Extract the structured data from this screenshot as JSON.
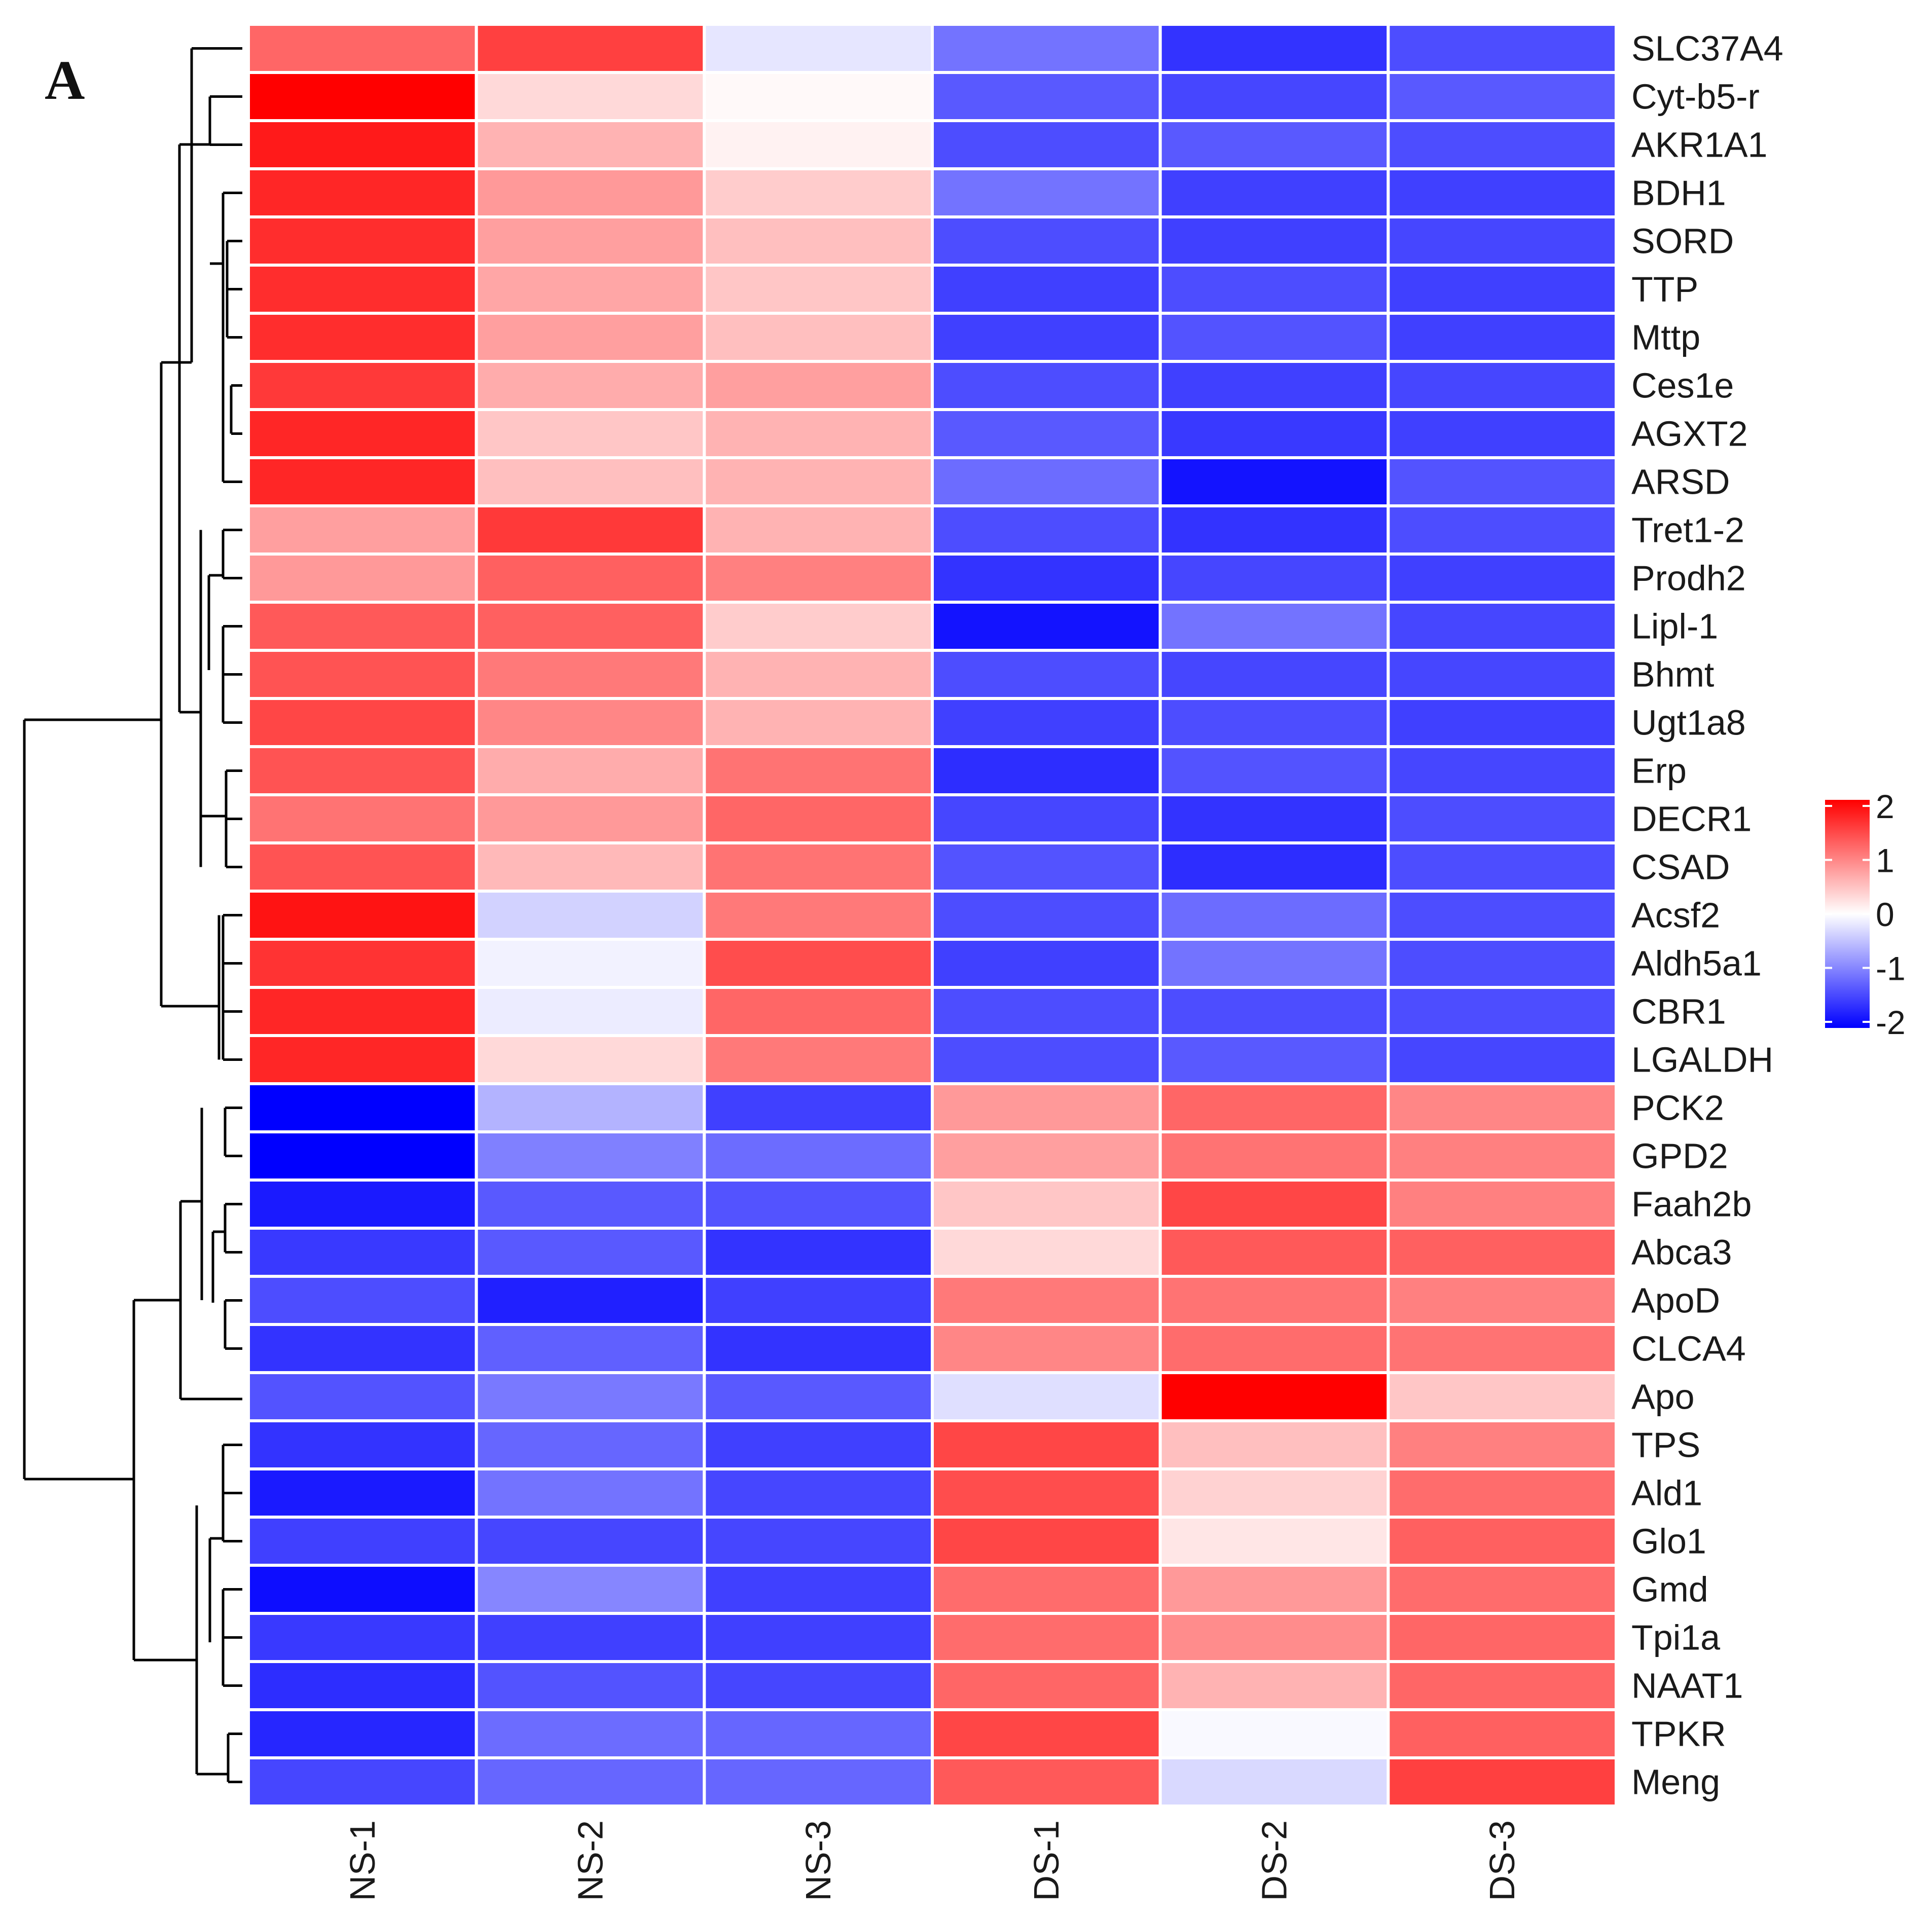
{
  "panel_label": "A",
  "colors": {
    "low": "#0000ff",
    "mid": "#ffffff",
    "high": "#ff0000"
  },
  "chart_data": {
    "type": "heatmap",
    "title": "",
    "columns": [
      "NS-1",
      "NS-2",
      "NS-3",
      "DS-1",
      "DS-2",
      "DS-3"
    ],
    "rows": [
      "SLC37A4",
      "Cyt-b5-r",
      "AKR1A1",
      "BDH1",
      "SORD",
      "TTP",
      "Mttp",
      "Ces1e",
      "AGXT2",
      "ARSD",
      "Tret1-2",
      "Prodh2",
      "Lipl-1",
      "Bhmt",
      "Ugt1a8",
      "Erp",
      "DECR1",
      "CSAD",
      "Acsf2",
      "Aldh5a1",
      "CBR1",
      "LGALDH",
      "PCK2",
      "GPD2",
      "Faah2b",
      "Abca3",
      "ApoD",
      "CLCA4",
      "Apo",
      "TPS",
      "Ald1",
      "Glo1",
      "Gmd",
      "Tpi1a",
      "NAAT1",
      "TPKR",
      "Meng"
    ],
    "values": [
      [
        1.2,
        1.5,
        -0.2,
        -1.1,
        -1.6,
        -1.4
      ],
      [
        2.0,
        0.3,
        0.05,
        -1.3,
        -1.45,
        -1.3
      ],
      [
        1.8,
        0.6,
        0.1,
        -1.4,
        -1.3,
        -1.4
      ],
      [
        1.7,
        0.8,
        0.4,
        -1.1,
        -1.5,
        -1.5
      ],
      [
        1.65,
        0.75,
        0.5,
        -1.4,
        -1.5,
        -1.45
      ],
      [
        1.65,
        0.7,
        0.45,
        -1.5,
        -1.4,
        -1.5
      ],
      [
        1.65,
        0.75,
        0.5,
        -1.5,
        -1.35,
        -1.5
      ],
      [
        1.55,
        0.65,
        0.75,
        -1.4,
        -1.5,
        -1.45
      ],
      [
        1.7,
        0.45,
        0.6,
        -1.3,
        -1.55,
        -1.5
      ],
      [
        1.7,
        0.5,
        0.6,
        -1.15,
        -1.85,
        -1.35
      ],
      [
        0.75,
        1.55,
        0.6,
        -1.4,
        -1.6,
        -1.4
      ],
      [
        0.8,
        1.25,
        1.0,
        -1.6,
        -1.45,
        -1.5
      ],
      [
        1.3,
        1.25,
        0.4,
        -1.85,
        -1.1,
        -1.45
      ],
      [
        1.35,
        1.05,
        0.6,
        -1.4,
        -1.45,
        -1.45
      ],
      [
        1.45,
        0.95,
        0.6,
        -1.5,
        -1.4,
        -1.5
      ],
      [
        1.35,
        0.65,
        1.1,
        -1.65,
        -1.35,
        -1.45
      ],
      [
        1.1,
        0.8,
        1.2,
        -1.45,
        -1.6,
        -1.4
      ],
      [
        1.35,
        0.55,
        1.1,
        -1.35,
        -1.65,
        -1.4
      ],
      [
        1.85,
        -0.35,
        1.05,
        -1.4,
        -1.15,
        -1.4
      ],
      [
        1.6,
        -0.1,
        1.4,
        -1.5,
        -1.1,
        -1.4
      ],
      [
        1.7,
        -0.15,
        1.2,
        -1.4,
        -1.4,
        -1.4
      ],
      [
        1.7,
        0.3,
        1.05,
        -1.4,
        -1.3,
        -1.45
      ],
      [
        -2.0,
        -0.6,
        -1.5,
        0.8,
        1.2,
        0.95
      ],
      [
        -2.0,
        -1.0,
        -1.15,
        0.75,
        1.1,
        1.0
      ],
      [
        -1.8,
        -1.3,
        -1.35,
        0.45,
        1.45,
        1.0
      ],
      [
        -1.55,
        -1.3,
        -1.6,
        0.3,
        1.3,
        1.25
      ],
      [
        -1.4,
        -1.75,
        -1.5,
        1.05,
        1.1,
        1.0
      ],
      [
        -1.6,
        -1.25,
        -1.6,
        0.95,
        1.15,
        1.1
      ],
      [
        -1.35,
        -1.05,
        -1.3,
        -0.25,
        2.0,
        0.45
      ],
      [
        -1.6,
        -1.2,
        -1.5,
        1.45,
        0.5,
        1.0
      ],
      [
        -1.8,
        -1.1,
        -1.45,
        1.4,
        0.35,
        1.15
      ],
      [
        -1.5,
        -1.45,
        -1.45,
        1.45,
        0.2,
        1.25
      ],
      [
        -1.9,
        -0.95,
        -1.5,
        1.15,
        0.8,
        1.15
      ],
      [
        -1.55,
        -1.5,
        -1.5,
        1.15,
        0.9,
        1.2
      ],
      [
        -1.65,
        -1.35,
        -1.45,
        1.2,
        0.6,
        1.2
      ],
      [
        -1.7,
        -1.15,
        -1.2,
        1.45,
        -0.05,
        1.25
      ],
      [
        -1.45,
        -1.2,
        -1.2,
        1.3,
        -0.3,
        1.5
      ]
    ],
    "color_scale": {
      "min": -2,
      "max": 2,
      "ticks": [
        2,
        1,
        0,
        -1,
        -2
      ]
    },
    "row_dendrogram": true
  }
}
